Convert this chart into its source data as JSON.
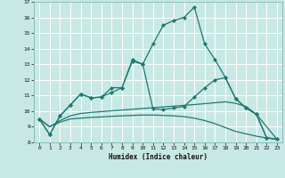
{
  "background_color": "#c8e8e4",
  "grid_color": "#b0d8d4",
  "line_color": "#1e7872",
  "xlabel": "Humidex (Indice chaleur)",
  "xlim": [
    -0.5,
    23.5
  ],
  "ylim": [
    8,
    17
  ],
  "yticks": [
    8,
    9,
    10,
    11,
    12,
    13,
    14,
    15,
    16,
    17
  ],
  "xticks": [
    0,
    1,
    2,
    3,
    4,
    5,
    6,
    7,
    8,
    9,
    10,
    11,
    12,
    13,
    14,
    15,
    16,
    17,
    18,
    19,
    20,
    21,
    22,
    23
  ],
  "curve1_x": [
    0,
    1,
    2,
    3,
    4,
    5,
    6,
    7,
    8,
    9,
    10,
    11,
    12,
    13,
    14,
    15,
    16,
    17,
    18,
    19,
    20,
    21,
    22,
    23
  ],
  "curve1_y": [
    9.5,
    8.5,
    9.7,
    10.4,
    11.1,
    10.85,
    10.9,
    11.2,
    11.5,
    13.3,
    13.0,
    14.3,
    15.5,
    15.8,
    16.0,
    16.65,
    14.3,
    13.3,
    12.15,
    10.8,
    10.2,
    9.8,
    8.3,
    8.2
  ],
  "curve2_x": [
    0,
    1,
    2,
    3,
    4,
    5,
    6,
    7,
    8,
    9,
    10,
    11,
    12,
    13,
    14,
    15,
    16,
    17,
    18,
    19,
    20,
    21,
    22,
    23
  ],
  "curve2_y": [
    9.5,
    8.5,
    9.7,
    10.4,
    11.1,
    10.85,
    10.9,
    11.5,
    11.5,
    13.2,
    13.0,
    10.15,
    10.1,
    10.2,
    10.3,
    10.9,
    11.5,
    12.0,
    12.15,
    10.8,
    10.2,
    9.8,
    8.3,
    8.2
  ],
  "curve3_x": [
    0,
    1,
    2,
    3,
    4,
    5,
    6,
    7,
    8,
    9,
    10,
    11,
    12,
    13,
    14,
    15,
    16,
    17,
    18,
    19,
    20,
    21,
    22,
    23
  ],
  "curve3_y": [
    9.5,
    9.0,
    9.4,
    9.7,
    9.85,
    9.92,
    9.97,
    10.02,
    10.07,
    10.12,
    10.17,
    10.22,
    10.27,
    10.32,
    10.37,
    10.42,
    10.48,
    10.54,
    10.6,
    10.5,
    10.3,
    9.8,
    9.0,
    8.2
  ],
  "curve4_x": [
    0,
    1,
    2,
    3,
    4,
    5,
    6,
    7,
    8,
    9,
    10,
    11,
    12,
    13,
    14,
    15,
    16,
    17,
    18,
    19,
    20,
    21,
    22,
    23
  ],
  "curve4_y": [
    9.5,
    9.0,
    9.3,
    9.5,
    9.55,
    9.6,
    9.63,
    9.67,
    9.7,
    9.73,
    9.75,
    9.75,
    9.73,
    9.7,
    9.65,
    9.55,
    9.4,
    9.2,
    8.95,
    8.7,
    8.55,
    8.4,
    8.28,
    8.2
  ]
}
